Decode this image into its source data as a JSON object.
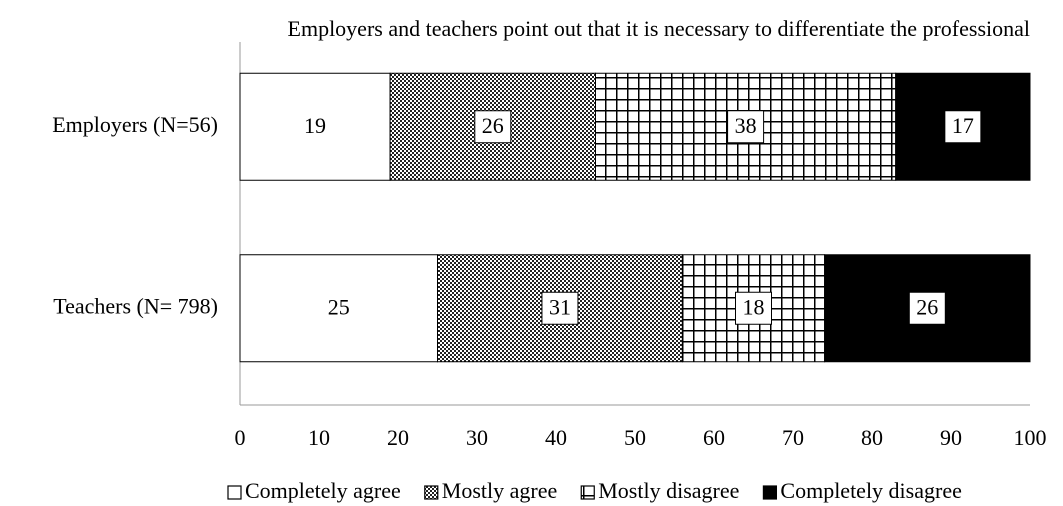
{
  "chart_data": {
    "type": "stacked_barh",
    "title": "Employers and teachers point out that it is necessary to differentiate the professional",
    "categories": [
      "Employers (N=56)",
      "Teachers (N= 798)"
    ],
    "series": [
      {
        "name": "Completely agree",
        "color": "#ffffff",
        "pattern": "none",
        "values": [
          19,
          25
        ]
      },
      {
        "name": "Mostly agree",
        "color": "#000000",
        "pattern": "dots",
        "values": [
          26,
          31
        ]
      },
      {
        "name": "Mostly disagree",
        "color": "#000000",
        "pattern": "grid",
        "values": [
          38,
          18
        ]
      },
      {
        "name": "Completely disagree",
        "color": "#000000",
        "pattern": "solid",
        "values": [
          17,
          26
        ]
      }
    ],
    "xlim": [
      0,
      100
    ],
    "xticks": [
      0,
      10,
      20,
      30,
      40,
      50,
      60,
      70,
      80,
      90,
      100
    ],
    "legend": "bottom"
  }
}
